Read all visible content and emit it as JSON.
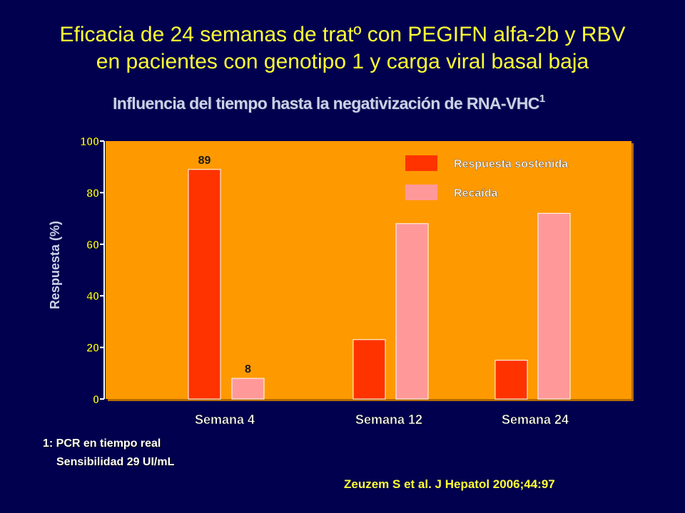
{
  "slide": {
    "title_line1": "Eficacia de 24 semanas de tratº con PEGIFN alfa-2b y RBV",
    "title_line2": "en pacientes con genotipo 1 y carga viral basal baja",
    "subtitle": "Influencia del tiempo hasta la negativización de RNA-VHC",
    "subtitle_sup": "1",
    "footnote_line1": "1: PCR en tiempo real",
    "footnote_line2": "Sensibilidad 29 UI/mL",
    "citation": "Zeuzem S et al. J Hepatol 2006;44:97"
  },
  "colors": {
    "background": "#00004f",
    "plot_area": "#ff9900",
    "sostenida": "#ff3300",
    "recaida": "#ff9999",
    "title": "#ffff33"
  },
  "chart_data": {
    "type": "bar",
    "categories": [
      "Semana 4",
      "Semana 12",
      "Semana 24"
    ],
    "series": [
      {
        "name": "Respuesta sostenida",
        "values": [
          89,
          23,
          15
        ]
      },
      {
        "name": "Recaída",
        "values": [
          8,
          68,
          72
        ]
      }
    ],
    "data_labels": [
      {
        "series": 0,
        "category": 0,
        "text": "89"
      },
      {
        "series": 1,
        "category": 0,
        "text": "8"
      }
    ],
    "ylabel": "Respuesta (%)",
    "ylim": [
      0,
      100
    ],
    "yticks": [
      0,
      20,
      40,
      60,
      80,
      100
    ],
    "legend_position": "top-right"
  }
}
